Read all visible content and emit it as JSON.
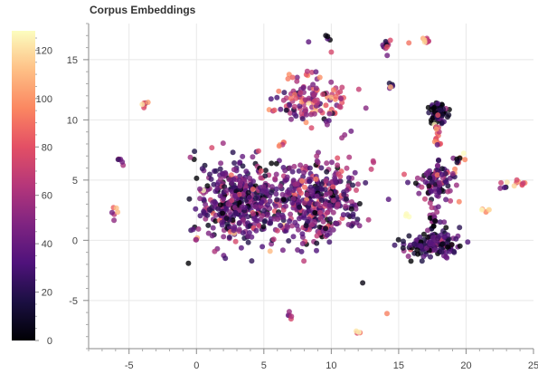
{
  "chart_data": {
    "type": "scatter",
    "title": "Corpus Embeddings",
    "xlabel": "",
    "ylabel": "",
    "xlim": [
      -8,
      25
    ],
    "ylim": [
      -9,
      18
    ],
    "xticks": [
      "-5",
      "0",
      "5",
      "10",
      "15",
      "20",
      "25"
    ],
    "xtick_values": [
      -5,
      0,
      5,
      10,
      15,
      20,
      25
    ],
    "yticks": [
      "-5",
      "0",
      "5",
      "10",
      "15"
    ],
    "ytick_values": [
      -5,
      0,
      5,
      10,
      15
    ],
    "grid": true,
    "colorbar": {
      "colormap": "magma",
      "range": [
        0,
        128
      ],
      "ticks": [
        "0",
        "20",
        "40",
        "60",
        "80",
        "100",
        "120"
      ],
      "tick_values": [
        0,
        20,
        40,
        60,
        80,
        100,
        120
      ]
    },
    "clusters": [
      {
        "x": 16.9,
        "y": 16.5,
        "sx": 0.25,
        "sy": 0.15,
        "n": 8,
        "c": 75
      },
      {
        "x": 14.2,
        "y": 16.2,
        "sx": 0.2,
        "sy": 0.3,
        "n": 12,
        "c": 55
      },
      {
        "x": 9.9,
        "y": 16.8,
        "sx": 0.15,
        "sy": 0.2,
        "n": 4,
        "c": 5
      },
      {
        "x": 8.3,
        "y": 16.5,
        "sx": 0.05,
        "sy": 0.05,
        "n": 1,
        "c": 70
      },
      {
        "x": 15.8,
        "y": 16.4,
        "sx": 0.05,
        "sy": 0.05,
        "n": 1,
        "c": 75
      },
      {
        "x": 9.9,
        "y": 15.6,
        "sx": 0.05,
        "sy": 0.05,
        "n": 1,
        "c": 70
      },
      {
        "x": 8.5,
        "y": 13.9,
        "sx": 0.3,
        "sy": 0.2,
        "n": 5,
        "c": 80
      },
      {
        "x": 8.7,
        "y": 11.5,
        "sx": 1.5,
        "sy": 0.9,
        "n": 130,
        "c": 60
      },
      {
        "x": 14.5,
        "y": 12.7,
        "sx": 0.15,
        "sy": 0.15,
        "n": 5,
        "c": 50
      },
      {
        "x": 6.2,
        "y": 8.0,
        "sx": 0.2,
        "sy": 0.2,
        "n": 5,
        "c": 110
      },
      {
        "x": -3.9,
        "y": 11.3,
        "sx": 0.2,
        "sy": 0.15,
        "n": 6,
        "c": 95
      },
      {
        "x": -5.7,
        "y": 6.5,
        "sx": 0.2,
        "sy": 0.15,
        "n": 6,
        "c": 70
      },
      {
        "x": -6.2,
        "y": 2.2,
        "sx": 0.3,
        "sy": 0.5,
        "n": 4,
        "c": 70
      },
      {
        "x": 3.0,
        "y": 3.2,
        "sx": 1.5,
        "sy": 1.7,
        "n": 420,
        "c": 35
      },
      {
        "x": 8.6,
        "y": 3.3,
        "sx": 1.8,
        "sy": 1.6,
        "n": 430,
        "c": 40
      },
      {
        "x": 0.6,
        "y": 4.2,
        "sx": 0.2,
        "sy": 0.15,
        "n": 4,
        "c": 80
      },
      {
        "x": 0.0,
        "y": -0.2,
        "sx": 0.15,
        "sy": 0.4,
        "n": 5,
        "c": 65
      },
      {
        "x": -0.5,
        "y": -1.9,
        "sx": 0.05,
        "sy": 0.05,
        "n": 1,
        "c": 0
      },
      {
        "x": 5.4,
        "y": -0.9,
        "sx": 0.05,
        "sy": 0.05,
        "n": 1,
        "c": 120
      },
      {
        "x": 7.0,
        "y": -6.3,
        "sx": 0.25,
        "sy": 0.15,
        "n": 5,
        "c": 70
      },
      {
        "x": 11.9,
        "y": -7.6,
        "sx": 0.2,
        "sy": 0.1,
        "n": 4,
        "c": 120
      },
      {
        "x": 12.3,
        "y": -3.5,
        "sx": 0.05,
        "sy": 0.05,
        "n": 1,
        "c": 55
      },
      {
        "x": 14.1,
        "y": -6.1,
        "sx": 0.05,
        "sy": 0.05,
        "n": 1,
        "c": 75
      },
      {
        "x": 18.0,
        "y": 10.5,
        "sx": 0.3,
        "sy": 0.5,
        "n": 60,
        "c": 5
      },
      {
        "x": 17.9,
        "y": 8.6,
        "sx": 0.15,
        "sy": 0.7,
        "n": 15,
        "c": 100
      },
      {
        "x": 17.9,
        "y": 6.5,
        "sx": 0.1,
        "sy": 0.8,
        "n": 8,
        "c": 40
      },
      {
        "x": 17.8,
        "y": 4.8,
        "sx": 0.9,
        "sy": 0.8,
        "n": 90,
        "c": 40
      },
      {
        "x": 17.6,
        "y": 2.0,
        "sx": 0.2,
        "sy": 1.1,
        "n": 25,
        "c": 30
      },
      {
        "x": 17.5,
        "y": -0.4,
        "sx": 1.0,
        "sy": 0.5,
        "n": 130,
        "c": 25
      },
      {
        "x": 19.6,
        "y": 7.0,
        "sx": 0.3,
        "sy": 0.3,
        "n": 6,
        "c": 100
      },
      {
        "x": 19.5,
        "y": 6.7,
        "sx": 0.15,
        "sy": 0.15,
        "n": 4,
        "c": 5
      },
      {
        "x": 23.6,
        "y": 4.7,
        "sx": 0.5,
        "sy": 0.15,
        "n": 10,
        "c": 85
      },
      {
        "x": 22.8,
        "y": 4.4,
        "sx": 0.2,
        "sy": 0.2,
        "n": 3,
        "c": 50
      },
      {
        "x": 21.6,
        "y": 2.6,
        "sx": 0.2,
        "sy": 0.15,
        "n": 5,
        "c": 115
      },
      {
        "x": 15.6,
        "y": 2.1,
        "sx": 0.1,
        "sy": 0.15,
        "n": 3,
        "c": 125
      },
      {
        "x": -6.0,
        "y": 2.5,
        "sx": 0.1,
        "sy": 0.1,
        "n": 2,
        "c": 100
      }
    ]
  }
}
